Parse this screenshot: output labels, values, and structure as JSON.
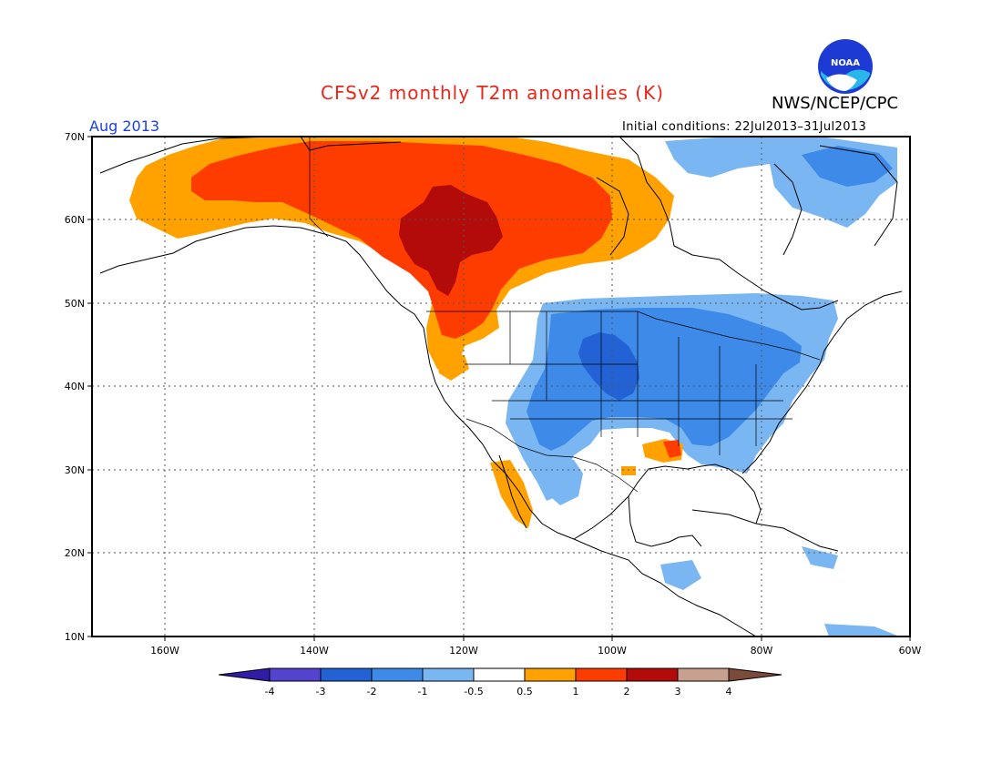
{
  "header": {
    "title": "CFSv2 monthly T2m anomalies (K)",
    "organization": "NWS/NCEP/CPC",
    "period": "Aug 2013",
    "initial_conditions": "Initial conditions: 22Jul2013–31Jul2013",
    "logo_text": "NOAA"
  },
  "map": {
    "projection": "equirectangular",
    "lon_range": [
      -172,
      -60
    ],
    "lat_range": [
      10,
      70
    ],
    "grid": true,
    "lat_labels": [
      "70N",
      "60N",
      "50N",
      "40N",
      "30N",
      "20N",
      "10N"
    ],
    "lon_labels": [
      "160W",
      "140W",
      "120W",
      "100W",
      "80W",
      "60W"
    ],
    "lat_values": [
      70,
      60,
      50,
      40,
      30,
      20,
      10
    ],
    "lon_values": [
      -160,
      -140,
      -120,
      -100,
      -80,
      -60
    ]
  },
  "colorbar": {
    "unit": "K",
    "labels": [
      "-4",
      "-3",
      "-2",
      "-1",
      "-0.5",
      "0.5",
      "1",
      "2",
      "3",
      "4"
    ],
    "colors": [
      "#2f1da8",
      "#5443cf",
      "#2262d4",
      "#3d8ae8",
      "#7ab6f2",
      "#ffffff",
      "#ffa200",
      "#ff3c00",
      "#b30a0a",
      "#c8a090",
      "#7b4a3a"
    ]
  },
  "anomaly_regions": [
    {
      "name": "alaska-warm",
      "level": "0.5 to 1",
      "color": "#ffa200"
    },
    {
      "name": "canada-warm",
      "level": "1 to 2",
      "color": "#ff3c00"
    },
    {
      "name": "canada-core-warm",
      "level": "2 to 3",
      "color": "#b30a0a"
    },
    {
      "name": "us-central-east-cool",
      "level": "-1 to -0.5",
      "color": "#7ab6f2"
    },
    {
      "name": "us-core-cool",
      "level": "-2 to -1",
      "color": "#3d8ae8"
    },
    {
      "name": "plains-cool",
      "level": "-3 to -2",
      "color": "#2262d4"
    },
    {
      "name": "arctic-islands-cool",
      "level": "-1 to -0.5",
      "color": "#7ab6f2"
    }
  ]
}
